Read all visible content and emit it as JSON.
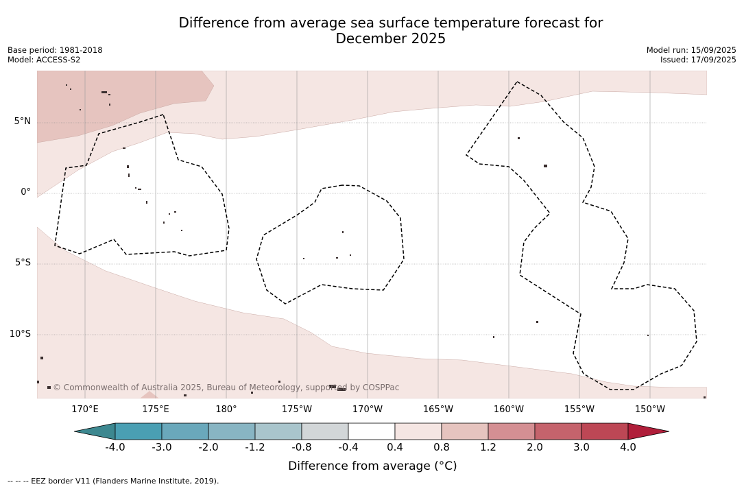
{
  "title_line1": "Difference from average sea surface temperature forecast for",
  "title_line2": "December 2025",
  "base_period": "Base period: 1981-2018",
  "model": "Model: ACCESS-S2",
  "model_run": "Model run: 15/09/2025",
  "issued": "Issued: 17/09/2025",
  "lat_labels": [
    "5°N",
    "0°",
    "5°S",
    "10°S"
  ],
  "lon_labels": [
    "170°E",
    "175°E",
    "180°",
    "175°W",
    "170°W",
    "165°W",
    "160°W",
    "155°W",
    "150°W"
  ],
  "copyright": "© Commonwealth of Australia 2025, Bureau of Meteorology, supported by COSPPac",
  "colorbar": {
    "ticks": [
      "-4.0",
      "-3.0",
      "-2.0",
      "-1.2",
      "-0.8",
      "-0.4",
      "0.4",
      "0.8",
      "1.2",
      "2.0",
      "3.0",
      "4.0"
    ],
    "colors": [
      "#3d8890",
      "#4a9fb3",
      "#6aa8bb",
      "#88b5c3",
      "#a9c5cc",
      "#d2d6d8",
      "#ffffff",
      "#f5e6e3",
      "#e6c4bf",
      "#d48f93",
      "#c5636c",
      "#bd4755",
      "#b01e3a"
    ],
    "label": "Difference from average (°C)"
  },
  "footnote": "-- -- -- EEZ border V11 (Flanders Marine Institute, 2019).",
  "colors": {
    "anomaly_0_4_to_0_8": "#f5e6e3",
    "anomaly_0_8_to_1_2": "#e6c4bf"
  }
}
